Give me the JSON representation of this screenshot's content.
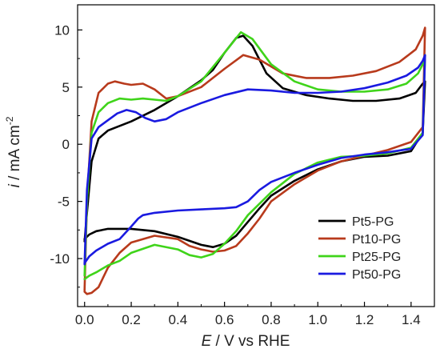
{
  "chart_data": {
    "type": "line",
    "title": "",
    "xlabel": {
      "italic": "E",
      "rest": " / V vs RHE"
    },
    "ylabel": {
      "italic": "i",
      "rest": " / mA cm",
      "sup": "-2"
    },
    "xlim": [
      -0.03,
      1.5
    ],
    "ylim": [
      -14.2,
      12.2
    ],
    "xticks": [
      0.0,
      0.2,
      0.4,
      0.6,
      0.8,
      1.0,
      1.2,
      1.4
    ],
    "xtick_labels": [
      "0.0",
      "0.2",
      "0.4",
      "0.6",
      "0.8",
      "1.0",
      "1.2",
      "1.4"
    ],
    "yticks": [
      -10,
      -5,
      0,
      5,
      10
    ],
    "ytick_labels": [
      "-10",
      "-5",
      "0",
      "5",
      "10"
    ],
    "grid": false,
    "legend_position": "bottom-right",
    "series": [
      {
        "name": "Pt5-PG",
        "color": "#000000",
        "x": [
          0.0,
          0.01,
          0.03,
          0.06,
          0.1,
          0.2,
          0.3,
          0.4,
          0.5,
          0.55,
          0.6,
          0.65,
          0.68,
          0.72,
          0.78,
          0.85,
          0.95,
          1.05,
          1.15,
          1.25,
          1.35,
          1.42,
          1.45,
          1.46,
          1.45,
          1.4,
          1.3,
          1.2,
          1.1,
          1.0,
          0.9,
          0.8,
          0.75,
          0.7,
          0.65,
          0.6,
          0.55,
          0.5,
          0.4,
          0.3,
          0.2,
          0.1,
          0.05,
          0.02,
          0.0
        ],
        "y": [
          -8.5,
          -6.0,
          -1.5,
          0.5,
          1.2,
          2.0,
          3.0,
          4.2,
          5.6,
          6.5,
          8.0,
          9.3,
          9.5,
          8.6,
          6.2,
          4.9,
          4.3,
          4.0,
          3.8,
          3.8,
          4.0,
          4.5,
          5.3,
          5.5,
          1.0,
          -0.6,
          -1.0,
          -1.1,
          -1.5,
          -2.2,
          -3.2,
          -4.5,
          -5.6,
          -6.8,
          -8.0,
          -8.7,
          -9.0,
          -8.8,
          -8.1,
          -7.6,
          -7.4,
          -7.4,
          -7.6,
          -7.9,
          -8.3
        ]
      },
      {
        "name": "Pt10-PG",
        "color": "#b83a1c",
        "x": [
          0.0,
          0.01,
          0.03,
          0.06,
          0.1,
          0.13,
          0.17,
          0.2,
          0.25,
          0.3,
          0.35,
          0.4,
          0.5,
          0.6,
          0.68,
          0.75,
          0.85,
          0.95,
          1.05,
          1.15,
          1.25,
          1.35,
          1.42,
          1.45,
          1.46,
          1.45,
          1.4,
          1.3,
          1.2,
          1.1,
          1.0,
          0.9,
          0.8,
          0.75,
          0.7,
          0.65,
          0.6,
          0.55,
          0.5,
          0.45,
          0.4,
          0.3,
          0.2,
          0.15,
          0.1,
          0.06,
          0.03,
          0.01,
          0.0
        ],
        "y": [
          -12.8,
          -5.0,
          2.0,
          4.5,
          5.3,
          5.5,
          5.3,
          5.2,
          5.3,
          4.8,
          4.0,
          4.2,
          5.0,
          6.6,
          7.8,
          7.4,
          6.2,
          5.8,
          5.8,
          6.0,
          6.4,
          7.2,
          8.3,
          9.5,
          10.2,
          1.5,
          0.2,
          -0.5,
          -1.0,
          -1.5,
          -2.3,
          -3.5,
          -5.0,
          -6.5,
          -7.8,
          -8.9,
          -9.3,
          -9.4,
          -9.2,
          -8.9,
          -8.3,
          -8.0,
          -8.6,
          -9.5,
          -10.8,
          -12.5,
          -13.0,
          -13.1,
          -12.9
        ]
      },
      {
        "name": "Pt25-PG",
        "color": "#3fd41a",
        "x": [
          0.0,
          0.01,
          0.03,
          0.06,
          0.1,
          0.15,
          0.2,
          0.25,
          0.3,
          0.35,
          0.4,
          0.5,
          0.6,
          0.67,
          0.72,
          0.8,
          0.9,
          1.0,
          1.1,
          1.2,
          1.3,
          1.38,
          1.43,
          1.45,
          1.46,
          1.45,
          1.4,
          1.3,
          1.2,
          1.1,
          1.0,
          0.9,
          0.8,
          0.7,
          0.65,
          0.6,
          0.55,
          0.5,
          0.45,
          0.4,
          0.3,
          0.2,
          0.15,
          0.1,
          0.05,
          0.02,
          0.0
        ],
        "y": [
          -11.5,
          -5.0,
          1.0,
          2.8,
          3.6,
          4.0,
          3.9,
          4.0,
          3.9,
          3.8,
          4.2,
          5.5,
          8.0,
          9.8,
          9.2,
          7.0,
          5.5,
          4.8,
          4.6,
          4.6,
          4.8,
          5.3,
          6.2,
          7.0,
          7.8,
          1.0,
          -0.3,
          -0.8,
          -1.0,
          -1.1,
          -1.6,
          -2.6,
          -4.2,
          -6.2,
          -7.6,
          -8.7,
          -9.6,
          -9.9,
          -9.7,
          -9.2,
          -8.8,
          -9.5,
          -10.2,
          -10.6,
          -11.2,
          -11.5,
          -11.8
        ]
      },
      {
        "name": "Pt50-PG",
        "color": "#1a1ae0",
        "x": [
          0.0,
          0.01,
          0.03,
          0.06,
          0.1,
          0.14,
          0.18,
          0.22,
          0.26,
          0.3,
          0.35,
          0.4,
          0.5,
          0.6,
          0.7,
          0.8,
          0.9,
          1.0,
          1.1,
          1.2,
          1.3,
          1.38,
          1.43,
          1.45,
          1.46,
          1.45,
          1.4,
          1.3,
          1.2,
          1.1,
          1.0,
          0.9,
          0.8,
          0.75,
          0.7,
          0.65,
          0.6,
          0.5,
          0.4,
          0.3,
          0.25,
          0.23,
          0.2,
          0.15,
          0.1,
          0.05,
          0.02,
          0.0
        ],
        "y": [
          -10.5,
          -4.0,
          0.5,
          1.5,
          2.1,
          2.7,
          3.0,
          2.8,
          2.3,
          2.0,
          2.2,
          2.8,
          3.6,
          4.3,
          4.8,
          4.7,
          4.5,
          4.5,
          4.6,
          4.9,
          5.4,
          6.0,
          6.7,
          7.3,
          7.8,
          0.8,
          -0.4,
          -0.7,
          -0.9,
          -1.2,
          -1.8,
          -2.5,
          -3.3,
          -4.0,
          -5.0,
          -5.5,
          -5.6,
          -5.7,
          -5.8,
          -6.0,
          -6.2,
          -6.5,
          -7.2,
          -8.3,
          -8.7,
          -9.3,
          -9.8,
          -10.4
        ]
      }
    ]
  }
}
